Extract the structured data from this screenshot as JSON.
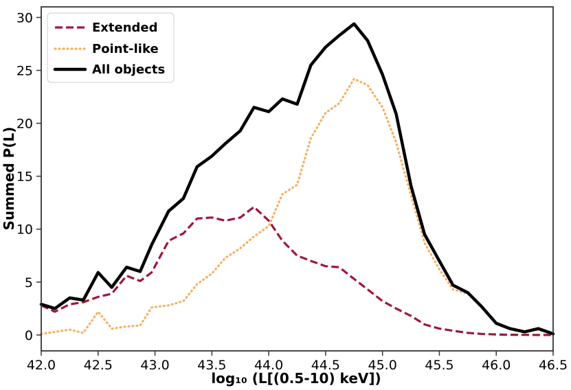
{
  "chart_data": {
    "type": "line",
    "title": "",
    "xlabel": "log₁₀ (L[(0.5-10) keV])",
    "ylabel": "Summed P(L)",
    "xlim": [
      42.0,
      46.5
    ],
    "ylim": [
      -1.5,
      31.0
    ],
    "xticks": [
      42.0,
      42.5,
      43.0,
      43.5,
      44.0,
      44.5,
      45.0,
      45.5,
      46.0,
      46.5
    ],
    "xtick_labels": [
      "42.0",
      "42.5",
      "43.0",
      "43.5",
      "44.0",
      "44.5",
      "45.0",
      "45.5",
      "46.0",
      "46.5"
    ],
    "yticks": [
      0,
      5,
      10,
      15,
      20,
      25,
      30
    ],
    "ytick_labels": [
      "0",
      "5",
      "10",
      "15",
      "20",
      "25",
      "30"
    ],
    "legend_position": "top-left",
    "colors": {
      "extended": "#a0163a",
      "pointlike": "#f5b061",
      "all": "#000000"
    },
    "series": [
      {
        "name": "Extended",
        "key": "extended",
        "style": "dashed",
        "x": [
          42.0,
          42.12,
          42.25,
          42.37,
          42.5,
          42.62,
          42.75,
          42.87,
          42.97,
          43.12,
          43.25,
          43.37,
          43.5,
          43.62,
          43.75,
          43.87,
          44.0,
          44.12,
          44.25,
          44.37,
          44.5,
          44.62,
          44.75,
          44.87,
          45.0,
          45.12,
          45.25,
          45.37,
          45.5,
          45.62,
          45.75,
          45.87,
          46.0,
          46.12,
          46.25,
          46.37,
          46.5
        ],
        "y": [
          2.8,
          2.2,
          2.9,
          3.1,
          3.6,
          3.9,
          5.6,
          5.1,
          5.9,
          8.9,
          9.6,
          11.0,
          11.1,
          10.8,
          11.1,
          12.1,
          10.8,
          8.9,
          7.5,
          7.0,
          6.5,
          6.4,
          5.3,
          4.3,
          3.2,
          2.5,
          1.8,
          1.0,
          0.6,
          0.4,
          0.2,
          0.1,
          0.05,
          0.02,
          0.01,
          0.0,
          0.0
        ]
      },
      {
        "name": "Point-like",
        "key": "pointlike",
        "style": "dotted",
        "x": [
          42.0,
          42.12,
          42.25,
          42.37,
          42.5,
          42.62,
          42.75,
          42.87,
          42.97,
          43.12,
          43.25,
          43.37,
          43.5,
          43.62,
          43.75,
          43.87,
          44.0,
          44.12,
          44.25,
          44.37,
          44.5,
          44.62,
          44.75,
          44.87,
          45.0,
          45.12,
          45.25,
          45.37,
          45.5,
          45.62,
          45.75,
          45.87,
          46.0,
          46.12,
          46.25,
          46.37,
          46.5
        ],
        "y": [
          0.1,
          0.3,
          0.5,
          0.2,
          2.2,
          0.6,
          0.8,
          0.9,
          2.6,
          2.8,
          3.2,
          4.8,
          5.8,
          7.3,
          8.2,
          9.3,
          10.3,
          13.3,
          14.2,
          18.6,
          21.0,
          21.9,
          24.2,
          23.6,
          21.5,
          18.2,
          13.2,
          8.7,
          6.2,
          4.3,
          3.9,
          2.7,
          1.1,
          0.6,
          0.3,
          0.5,
          0.1
        ]
      },
      {
        "name": "All objects",
        "key": "all",
        "style": "solid",
        "x": [
          42.0,
          42.12,
          42.25,
          42.37,
          42.5,
          42.62,
          42.75,
          42.87,
          42.97,
          43.12,
          43.25,
          43.37,
          43.5,
          43.62,
          43.75,
          43.87,
          44.0,
          44.12,
          44.25,
          44.37,
          44.5,
          44.62,
          44.75,
          44.87,
          45.0,
          45.12,
          45.25,
          45.37,
          45.5,
          45.62,
          45.75,
          45.87,
          46.0,
          46.12,
          46.25,
          46.37,
          46.5
        ],
        "y": [
          2.9,
          2.5,
          3.5,
          3.3,
          5.9,
          4.5,
          6.4,
          6.0,
          8.5,
          11.7,
          12.9,
          15.9,
          16.9,
          18.1,
          19.3,
          21.5,
          21.1,
          22.3,
          21.8,
          25.5,
          27.2,
          28.3,
          29.4,
          27.8,
          24.6,
          20.9,
          14.1,
          9.5,
          7.0,
          4.7,
          4.0,
          2.7,
          1.1,
          0.6,
          0.3,
          0.6,
          0.1
        ]
      }
    ]
  }
}
